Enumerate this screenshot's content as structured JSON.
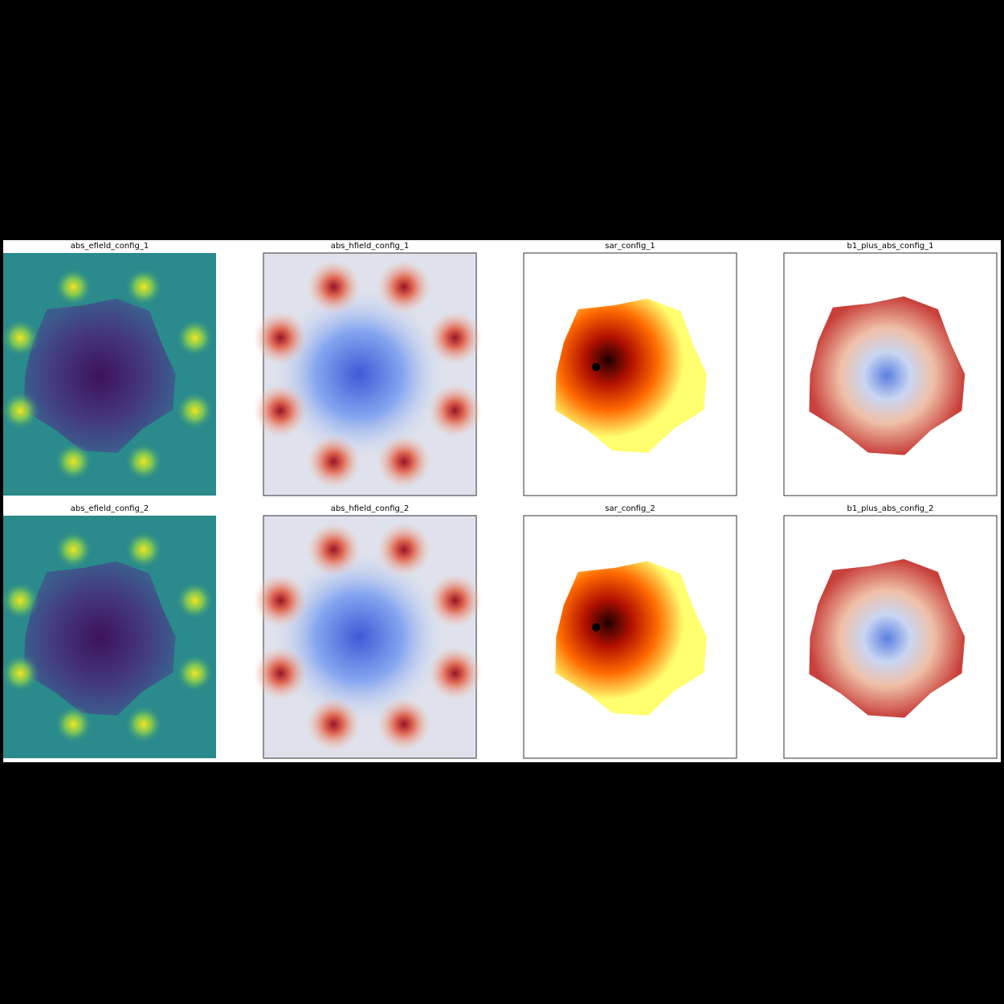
{
  "panels": [
    {
      "title": "abs_efield_config_1"
    },
    {
      "title": "abs_hfield_config_1"
    },
    {
      "title": "sar_config_1"
    },
    {
      "title": "b1_plus_abs_config_1"
    },
    {
      "title": "abs_efield_config_2"
    },
    {
      "title": "abs_hfield_config_2"
    },
    {
      "title": "sar_config_2"
    },
    {
      "title": "b1_plus_abs_config_2"
    }
  ]
}
